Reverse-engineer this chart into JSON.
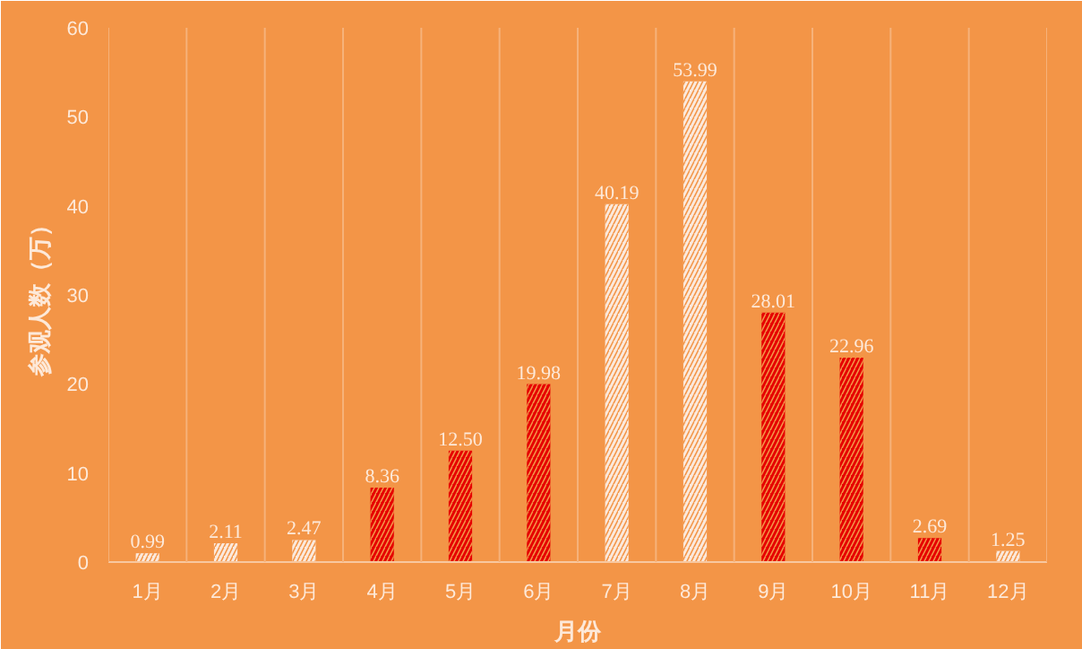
{
  "chart_data": {
    "type": "bar",
    "xlabel": "月份",
    "ylabel": "参观人数（万）",
    "categories": [
      "1月",
      "2月",
      "3月",
      "4月",
      "5月",
      "6月",
      "7月",
      "8月",
      "9月",
      "10月",
      "11月",
      "12月"
    ],
    "values": [
      0.99,
      2.11,
      2.47,
      8.36,
      12.5,
      19.98,
      40.19,
      53.99,
      28.01,
      22.96,
      2.69,
      1.25
    ],
    "value_labels": [
      "0.99",
      "2.11",
      "2.47",
      "8.36",
      "12.50",
      "19.98",
      "40.19",
      "53.99",
      "28.01",
      "22.96",
      "2.69",
      "1.25"
    ],
    "colors": [
      "#fbe9dc",
      "#fbe9dc",
      "#fbe9dc",
      "#e60000",
      "#e60000",
      "#e60000",
      "#fbe9dc",
      "#fbe9dc",
      "#e60000",
      "#e60000",
      "#e60000",
      "#fbe9dc"
    ],
    "ylim": [
      0,
      60
    ],
    "yticks": [
      0,
      10,
      20,
      30,
      40,
      50,
      60
    ],
    "grid": "x"
  }
}
